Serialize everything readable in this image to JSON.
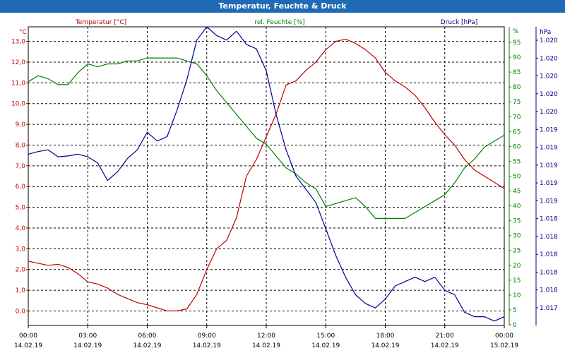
{
  "chart_data": {
    "type": "line",
    "title": "Temperatur, Feuchte & Druck",
    "x_time_labels": [
      "00:00",
      "03:00",
      "06:00",
      "09:00",
      "12:00",
      "15:00",
      "18:00",
      "21:00",
      "00:00"
    ],
    "x_date_labels": [
      "14.02.19",
      "14.02.19",
      "14.02.19",
      "14.02.19",
      "14.02.19",
      "14.02.19",
      "14.02.19",
      "14.02.19",
      "15.02.19"
    ],
    "xlim_hours": [
      0,
      24
    ],
    "grid": true,
    "series": [
      {
        "name": "Temperatur [°C]",
        "unit_label": "°C",
        "axis": "left",
        "color": "#c00000",
        "ylim": [
          -0.7,
          13.7
        ],
        "tick_labels": [
          "0,0",
          "1,0",
          "2,0",
          "3,0",
          "4,0",
          "5,0",
          "6,0",
          "7,0",
          "8,0",
          "9,0",
          "10,0",
          "11,0",
          "12,0",
          "13,0"
        ],
        "x": [
          0,
          0.5,
          1,
          1.5,
          2,
          2.5,
          3,
          3.5,
          4,
          4.5,
          5,
          5.5,
          6,
          6.5,
          7,
          7.5,
          8,
          8.5,
          9,
          9.5,
          10,
          10.5,
          11,
          11.5,
          12,
          12.5,
          13,
          13.5,
          14,
          14.5,
          15,
          15.5,
          16,
          16.5,
          17,
          17.5,
          18,
          18.5,
          19,
          19.5,
          20,
          20.5,
          21,
          21.5,
          22,
          22.5,
          23,
          23.5,
          24
        ],
        "values": [
          2.4,
          2.3,
          2.2,
          2.25,
          2.1,
          1.8,
          1.4,
          1.3,
          1.1,
          0.8,
          0.6,
          0.4,
          0.3,
          0.15,
          0.0,
          0.0,
          0.1,
          0.8,
          2.0,
          3.0,
          3.4,
          4.5,
          6.5,
          7.3,
          8.4,
          9.5,
          10.9,
          11.1,
          11.6,
          12.0,
          12.6,
          13.0,
          13.1,
          12.9,
          12.6,
          12.2,
          11.5,
          11.1,
          10.8,
          10.4,
          9.8,
          9.1,
          8.5,
          8.0,
          7.3,
          6.8,
          6.5,
          6.2,
          5.9
        ]
      },
      {
        "name": "rel. Feuchte [%]",
        "unit_label": "%",
        "axis": "right",
        "color": "#008000",
        "ylim": [
          0,
          95
        ],
        "tick_labels": [
          "0",
          "5",
          "10",
          "15",
          "20",
          "25",
          "30",
          "35",
          "40",
          "45",
          "50",
          "55",
          "60",
          "65",
          "70",
          "75",
          "80",
          "85",
          "90",
          "95",
          "%"
        ],
        "x": [
          0,
          0.5,
          1,
          1.5,
          2,
          2.5,
          3,
          3.5,
          4,
          4.5,
          5,
          5.5,
          6,
          6.5,
          7,
          7.5,
          8,
          8.5,
          9,
          9.5,
          10,
          10.5,
          11,
          11.5,
          12,
          12.5,
          13,
          13.5,
          14,
          14.5,
          15,
          15.5,
          16,
          16.5,
          17,
          17.5,
          18,
          18.5,
          19,
          19.5,
          20,
          20.5,
          21,
          21.5,
          22,
          22.5,
          23,
          23.5,
          24
        ],
        "values": [
          82,
          84,
          83,
          81,
          81,
          85,
          88,
          87,
          88,
          88,
          89,
          89,
          90,
          90,
          90,
          90,
          89,
          88,
          84,
          79,
          75,
          71,
          67,
          63,
          61,
          57,
          53,
          51,
          48,
          46,
          40,
          41,
          42,
          43,
          40,
          36,
          36,
          36,
          36,
          38,
          40,
          42,
          44,
          48,
          53,
          56,
          60,
          62,
          64
        ]
      },
      {
        "name": "Druck [hPa]",
        "unit_label": "hPa",
        "axis": "right2",
        "color": "#00008b",
        "ylim": [
          1016.8,
          1020.2
        ],
        "tick_labels": [
          "1.017",
          "1.018",
          "1.018",
          "1.018",
          "1.018",
          "1.018",
          "1.019",
          "1.019",
          "1.019",
          "1.019",
          "1.019",
          "1.020",
          "1.020",
          "1.020",
          "1.020",
          "1.020"
        ],
        "x": [
          0,
          0.5,
          1,
          1.5,
          2,
          2.5,
          3,
          3.5,
          4,
          4.5,
          5,
          5.5,
          6,
          6.5,
          7,
          7.5,
          8,
          8.5,
          9,
          9.5,
          10,
          10.5,
          11,
          11.5,
          12,
          12.5,
          13,
          13.5,
          14,
          14.5,
          15,
          15.5,
          16,
          16.5,
          17,
          17.5,
          18,
          18.5,
          19,
          19.5,
          20,
          20.5,
          21,
          21.5,
          22,
          22.5,
          23,
          23.5,
          24
        ],
        "values": [
          1018.75,
          1018.78,
          1018.8,
          1018.72,
          1018.73,
          1018.75,
          1018.72,
          1018.65,
          1018.45,
          1018.55,
          1018.7,
          1018.8,
          1019.0,
          1018.9,
          1018.95,
          1019.25,
          1019.6,
          1020.05,
          1020.2,
          1020.1,
          1020.05,
          1020.15,
          1020.0,
          1019.95,
          1019.7,
          1019.2,
          1018.8,
          1018.5,
          1018.35,
          1018.2,
          1017.9,
          1017.6,
          1017.35,
          1017.15,
          1017.05,
          1017.0,
          1017.1,
          1017.25,
          1017.3,
          1017.35,
          1017.3,
          1017.35,
          1017.2,
          1017.15,
          1016.95,
          1016.9,
          1016.9,
          1016.85,
          1016.9
        ]
      }
    ]
  }
}
